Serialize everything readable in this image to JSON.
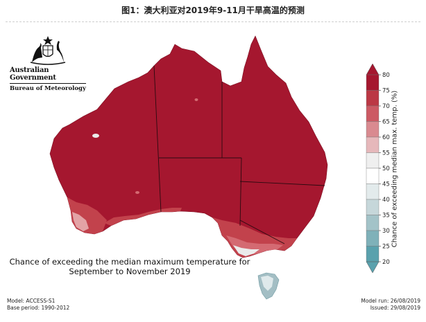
{
  "page_title": "图1：澳大利亚对2019年9-11月干旱高温的预测",
  "branding": {
    "government": "Australian Government",
    "bureau": "Bureau of Meteorology"
  },
  "map": {
    "caption_line1": "Chance of exceeding the median maximum temperature for",
    "caption_line2": "September to November 2019",
    "colors": {
      "dominant_80": "#a5172f",
      "band_70_75": "#c2424c",
      "band_65": "#d46a72",
      "band_60": "#e3a3a6",
      "band_55": "#ebebeb",
      "tasmania": "#a3bec4"
    }
  },
  "legend": {
    "label": "Chance of exceeding median max. temp. (%)",
    "ticks": [
      "80",
      "75",
      "70",
      "65",
      "60",
      "55",
      "50",
      "45",
      "40",
      "35",
      "30",
      "25",
      "20"
    ],
    "colors": [
      "#a5172f",
      "#bb3845",
      "#cc5a64",
      "#d98a90",
      "#e6b8bb",
      "#efefef",
      "#ffffff",
      "#e3ebec",
      "#c6d7da",
      "#a3c3c8",
      "#7fb1b9",
      "#5aa1ad"
    ]
  },
  "footer": {
    "model": "Model: ACCESS-S1",
    "base_period": "Base period: 1990-2012",
    "model_run": "Model run: 26/08/2019",
    "issued": "Issued: 29/08/2019"
  }
}
